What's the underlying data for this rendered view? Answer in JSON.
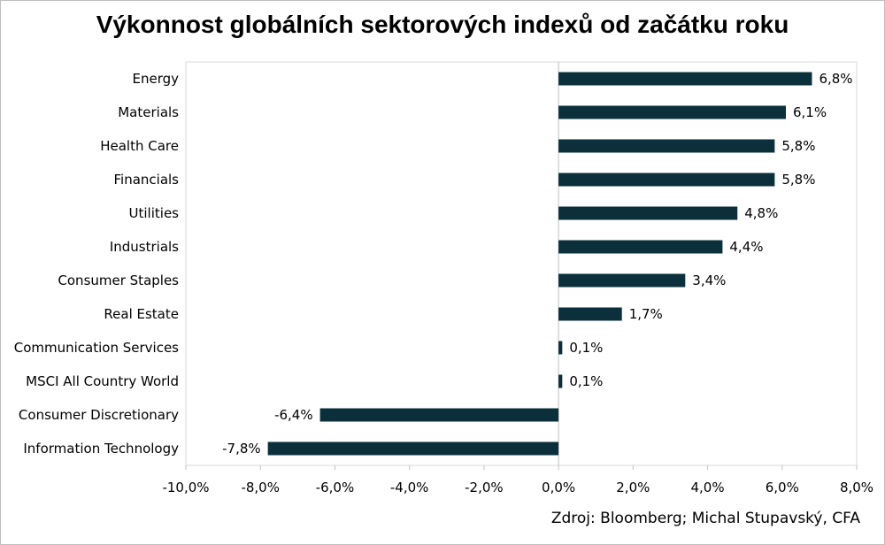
{
  "chart_data": {
    "type": "bar",
    "orientation": "horizontal",
    "title": "Výkonnost globálních sektorových indexů od začátku roku",
    "categories": [
      "Energy",
      "Materials",
      "Health Care",
      "Financials",
      "Utilities",
      "Industrials",
      "Consumer Staples",
      "Real Estate",
      "Communication Services",
      "MSCI All Country World",
      "Consumer Discretionary",
      "Information Technology"
    ],
    "values": [
      6.8,
      6.1,
      5.8,
      5.8,
      4.8,
      4.4,
      3.4,
      1.7,
      0.1,
      0.1,
      -6.4,
      -7.8
    ],
    "value_labels": [
      "6,8%",
      "6,1%",
      "5,8%",
      "5,8%",
      "4,8%",
      "4,4%",
      "3,4%",
      "1,7%",
      "0,1%",
      "0,1%",
      "-6,4%",
      "-7,8%"
    ],
    "xlim": [
      -10,
      8
    ],
    "xticks": [
      -10,
      -8,
      -6,
      -4,
      -2,
      0,
      2,
      4,
      6,
      8
    ],
    "xtick_labels": [
      "-10,0%",
      "-8,0%",
      "-6,0%",
      "-4,0%",
      "-2,0%",
      "0,0%",
      "2,0%",
      "4,0%",
      "6,0%",
      "8,0%"
    ],
    "bar_color": "#0b303b",
    "grid": false,
    "legend": "none"
  },
  "source": "Zdroj: Bloomberg; Michal Stupavský, CFA"
}
